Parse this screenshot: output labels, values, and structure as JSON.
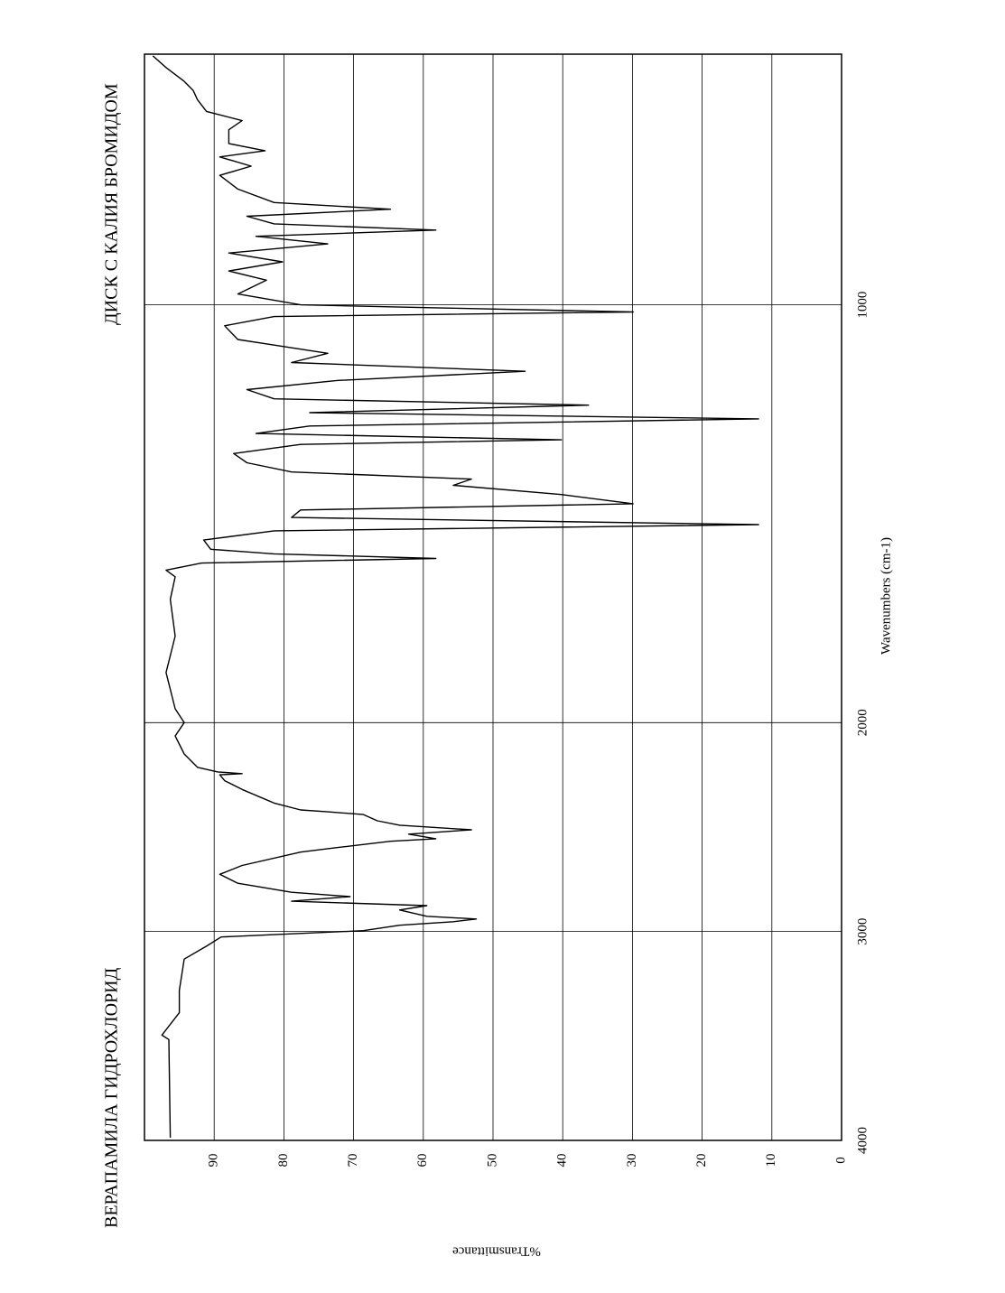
{
  "chart_data": {
    "type": "line",
    "title": "ВЕРАПАМИЛА  ГИДРОХЛОРИД",
    "subtitle": "ДИСК С КАЛИЯ БРОМИДОМ",
    "x_label": "Wavenumbers (cm-1)",
    "y_label": "%Transmittance",
    "xlim": [
      4000,
      400
    ],
    "x_scale_break": 2000,
    "xticks": [
      4000,
      3000,
      2000,
      1000
    ],
    "ylim": [
      0,
      100
    ],
    "yticks": [
      0,
      10,
      20,
      30,
      40,
      50,
      60,
      70,
      80,
      90
    ],
    "grid": true,
    "x": [
      3987,
      3517,
      3496,
      3389,
      3282,
      3132,
      3068,
      3026,
      2996,
      2970,
      2953,
      2940,
      2927,
      2897,
      2876,
      2855,
      2833,
      2812,
      2769,
      2726,
      2684,
      2620,
      2598,
      2568,
      2556,
      2534,
      2513,
      2491,
      2470,
      2440,
      2427,
      2418,
      2385,
      2320,
      2278,
      2250,
      2244,
      2236,
      2214,
      2150,
      2064,
      2000,
      1967,
      1880,
      1793,
      1705,
      1651,
      1635,
      1618,
      1607,
      1596,
      1585,
      1563,
      1541,
      1526,
      1509,
      1491,
      1476,
      1454,
      1432,
      1417,
      1400,
      1378,
      1356,
      1334,
      1323,
      1308,
      1290,
      1273,
      1258,
      1240,
      1225,
      1203,
      1181,
      1159,
      1138,
      1116,
      1083,
      1050,
      1028,
      1017,
      1007,
      1000,
      974,
      941,
      919,
      897,
      876,
      854,
      836,
      821,
      806,
      788,
      771,
      755,
      723,
      690,
      668,
      646,
      631,
      614,
      581,
      559,
      537,
      509,
      487,
      465,
      432,
      404
    ],
    "series": [
      {
        "name": "%Transmittance",
        "color": "#000000",
        "values": [
          96.3,
          96.5,
          97.5,
          95,
          95,
          94.3,
          91,
          89,
          68.6,
          63.4,
          55.7,
          52.4,
          59.5,
          63.4,
          59.5,
          78.9,
          70.5,
          78.9,
          86.6,
          89.2,
          86,
          77.6,
          72.4,
          64.7,
          58.2,
          62.1,
          53.1,
          63.4,
          66.6,
          68.6,
          73.7,
          77.6,
          81.4,
          86,
          88.5,
          89.2,
          86,
          89.5,
          92.4,
          94.3,
          95.6,
          94.3,
          95.6,
          96.9,
          95.6,
          96.3,
          95.6,
          96.9,
          91.8,
          58.2,
          81.4,
          90.5,
          91.5,
          81.4,
          11.9,
          78.9,
          77.6,
          29.9,
          40.2,
          55.7,
          53.1,
          78.9,
          85.3,
          87.2,
          77.6,
          40.2,
          84,
          76.3,
          11.9,
          76.3,
          36.3,
          81.4,
          85.3,
          72.4,
          45.4,
          78.9,
          73.7,
          86.6,
          88.5,
          81.4,
          29.9,
          58.2,
          77.6,
          86.6,
          82.5,
          87.9,
          80.2,
          87.9,
          73.7,
          84,
          58.2,
          81.4,
          85.3,
          64.7,
          81.4,
          86.6,
          89.2,
          84.7,
          89.2,
          82.7,
          87.9,
          87.9,
          86,
          91.1,
          92.4,
          93,
          94.3,
          96.9,
          98.8
        ]
      }
    ]
  }
}
